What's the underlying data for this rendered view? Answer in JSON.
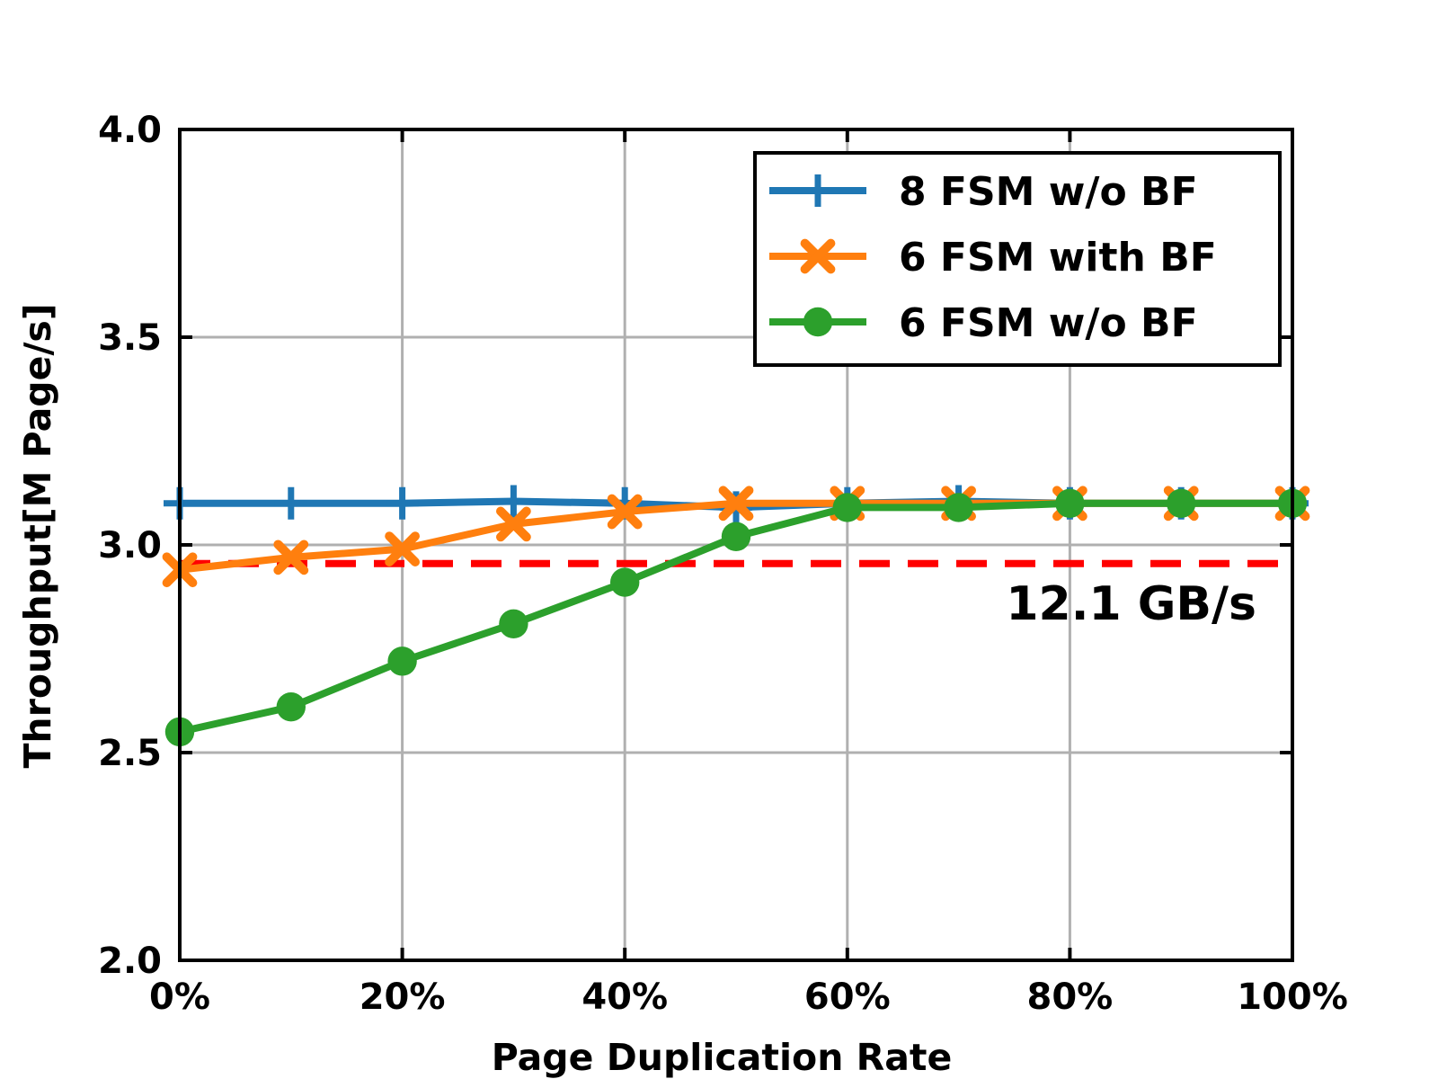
{
  "chart_data": {
    "type": "line",
    "xlabel": "Page Duplication Rate",
    "ylabel": "Throughput[M Page/s]",
    "x": [
      0,
      10,
      20,
      30,
      40,
      50,
      60,
      70,
      80,
      90,
      100
    ],
    "x_ticks": [
      0,
      20,
      40,
      60,
      80,
      100
    ],
    "x_tick_labels": [
      "0%",
      "20%",
      "40%",
      "60%",
      "80%",
      "100%"
    ],
    "xlim": [
      0,
      100
    ],
    "ylim": [
      2.0,
      4.0
    ],
    "y_ticks": [
      2.0,
      2.5,
      3.0,
      3.5,
      4.0
    ],
    "y_tick_labels": [
      "2.0",
      "2.5",
      "3.0",
      "3.5",
      "4.0"
    ],
    "grid": true,
    "legend_position": "top-right",
    "series": [
      {
        "name": "8 FSM w/o BF",
        "color": "#1f77b4",
        "marker": "plus",
        "values": [
          3.1,
          3.1,
          3.1,
          3.105,
          3.1,
          3.09,
          3.1,
          3.105,
          3.1,
          3.1,
          3.1
        ]
      },
      {
        "name": "6 FSM with BF",
        "color": "#ff7f0e",
        "marker": "x",
        "values": [
          2.94,
          2.97,
          2.99,
          3.05,
          3.08,
          3.1,
          3.1,
          3.1,
          3.1,
          3.1,
          3.1
        ]
      },
      {
        "name": "6 FSM w/o BF",
        "color": "#2ca02c",
        "marker": "circle",
        "values": [
          2.55,
          2.61,
          2.72,
          2.81,
          2.91,
          3.02,
          3.09,
          3.09,
          3.1,
          3.1,
          3.1
        ]
      }
    ],
    "reference_line": {
      "value": 2.955,
      "color": "#ff0000",
      "style": "dashed",
      "label": "12.1 GB/s"
    }
  }
}
